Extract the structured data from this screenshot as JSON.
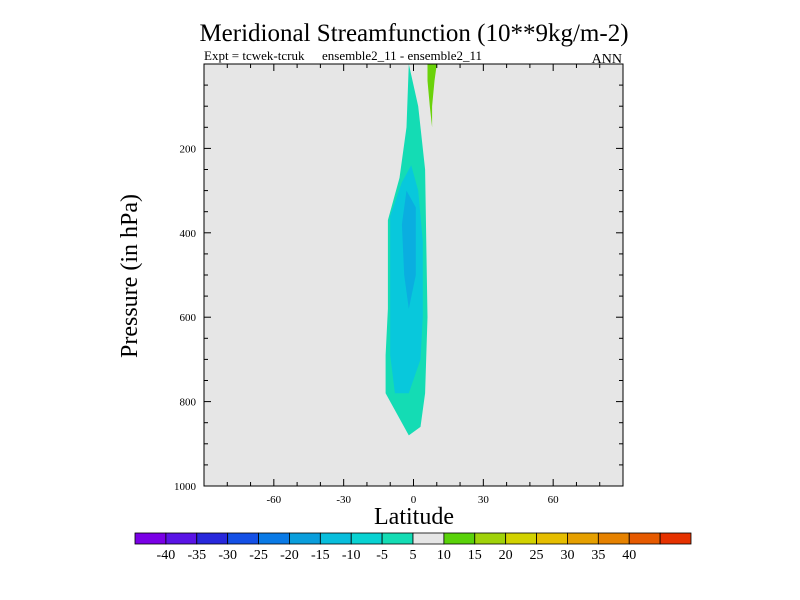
{
  "chart_data": {
    "type": "contour",
    "title": "Meridional Streamfunction (10**9kg/m-2)",
    "subtitle_left": "Expt = tcwek-tcruk",
    "subtitle_mid": "ensemble2_11 - ensemble2_11",
    "subtitle_right": "ANN",
    "xlabel": "Latitude",
    "ylabel": "Pressure (in hPa)",
    "xlim": [
      -90,
      90
    ],
    "ylim": [
      1000,
      0
    ],
    "x_ticks": [
      {
        "value": -60,
        "label": "-60"
      },
      {
        "value": -30,
        "label": "-30"
      },
      {
        "value": 0,
        "label": "0"
      },
      {
        "value": 30,
        "label": "30"
      },
      {
        "value": 60,
        "label": "60"
      }
    ],
    "y_ticks": [
      {
        "value": 200,
        "label": "200"
      },
      {
        "value": 400,
        "label": "400"
      },
      {
        "value": 600,
        "label": "600"
      },
      {
        "value": 800,
        "label": "800"
      },
      {
        "value": 1000,
        "label": "1000"
      }
    ],
    "background_color": "#e6e6e6",
    "regions": [
      {
        "level": "-10 to -5",
        "color": "#14dcb4",
        "points": [
          [
            -2,
            0
          ],
          [
            2,
            100
          ],
          [
            5,
            250
          ],
          [
            6,
            600
          ],
          [
            5,
            780
          ],
          [
            3,
            860
          ],
          [
            -2,
            880
          ],
          [
            -6,
            840
          ],
          [
            -12,
            780
          ],
          [
            -12,
            690
          ],
          [
            -11,
            580
          ],
          [
            -11,
            370
          ],
          [
            -6,
            270
          ],
          [
            -3,
            150
          ]
        ]
      },
      {
        "level": "-15 to -10",
        "color": "#08c8dc",
        "points": [
          [
            -1,
            240
          ],
          [
            2,
            300
          ],
          [
            4,
            420
          ],
          [
            4,
            600
          ],
          [
            3,
            700
          ],
          [
            -2,
            780
          ],
          [
            -8,
            780
          ],
          [
            -10,
            690
          ],
          [
            -10,
            560
          ],
          [
            -10,
            360
          ],
          [
            -5,
            280
          ]
        ]
      },
      {
        "level": "-20 to -15",
        "color": "#0aaee0",
        "points": [
          [
            -3,
            300
          ],
          [
            1,
            340
          ],
          [
            1,
            500
          ],
          [
            -2,
            580
          ],
          [
            -4,
            500
          ],
          [
            -5,
            380
          ]
        ]
      },
      {
        "level": "5 to 10",
        "color": "#6ad20a",
        "points": [
          [
            6,
            0
          ],
          [
            10,
            0
          ],
          [
            9,
            40
          ],
          [
            8,
            100
          ],
          [
            8,
            150
          ],
          [
            7,
            100
          ],
          [
            6,
            40
          ]
        ]
      }
    ],
    "colorbar": {
      "colors": [
        "#7a00e6",
        "#5a14e6",
        "#2828dc",
        "#1450e6",
        "#0a7ae6",
        "#0a9edc",
        "#08bedc",
        "#08d2d2",
        "#14dcb4",
        "#e6e6e6",
        "#5ad20a",
        "#a0d20a",
        "#d2d200",
        "#e6be00",
        "#e6a000",
        "#e68200",
        "#e65a00",
        "#e63200"
      ],
      "labels": [
        "-40",
        "-35",
        "-30",
        "-25",
        "-20",
        "-15",
        "-10",
        "-5",
        "5",
        "10",
        "15",
        "20",
        "25",
        "30",
        "35",
        "40"
      ]
    }
  }
}
